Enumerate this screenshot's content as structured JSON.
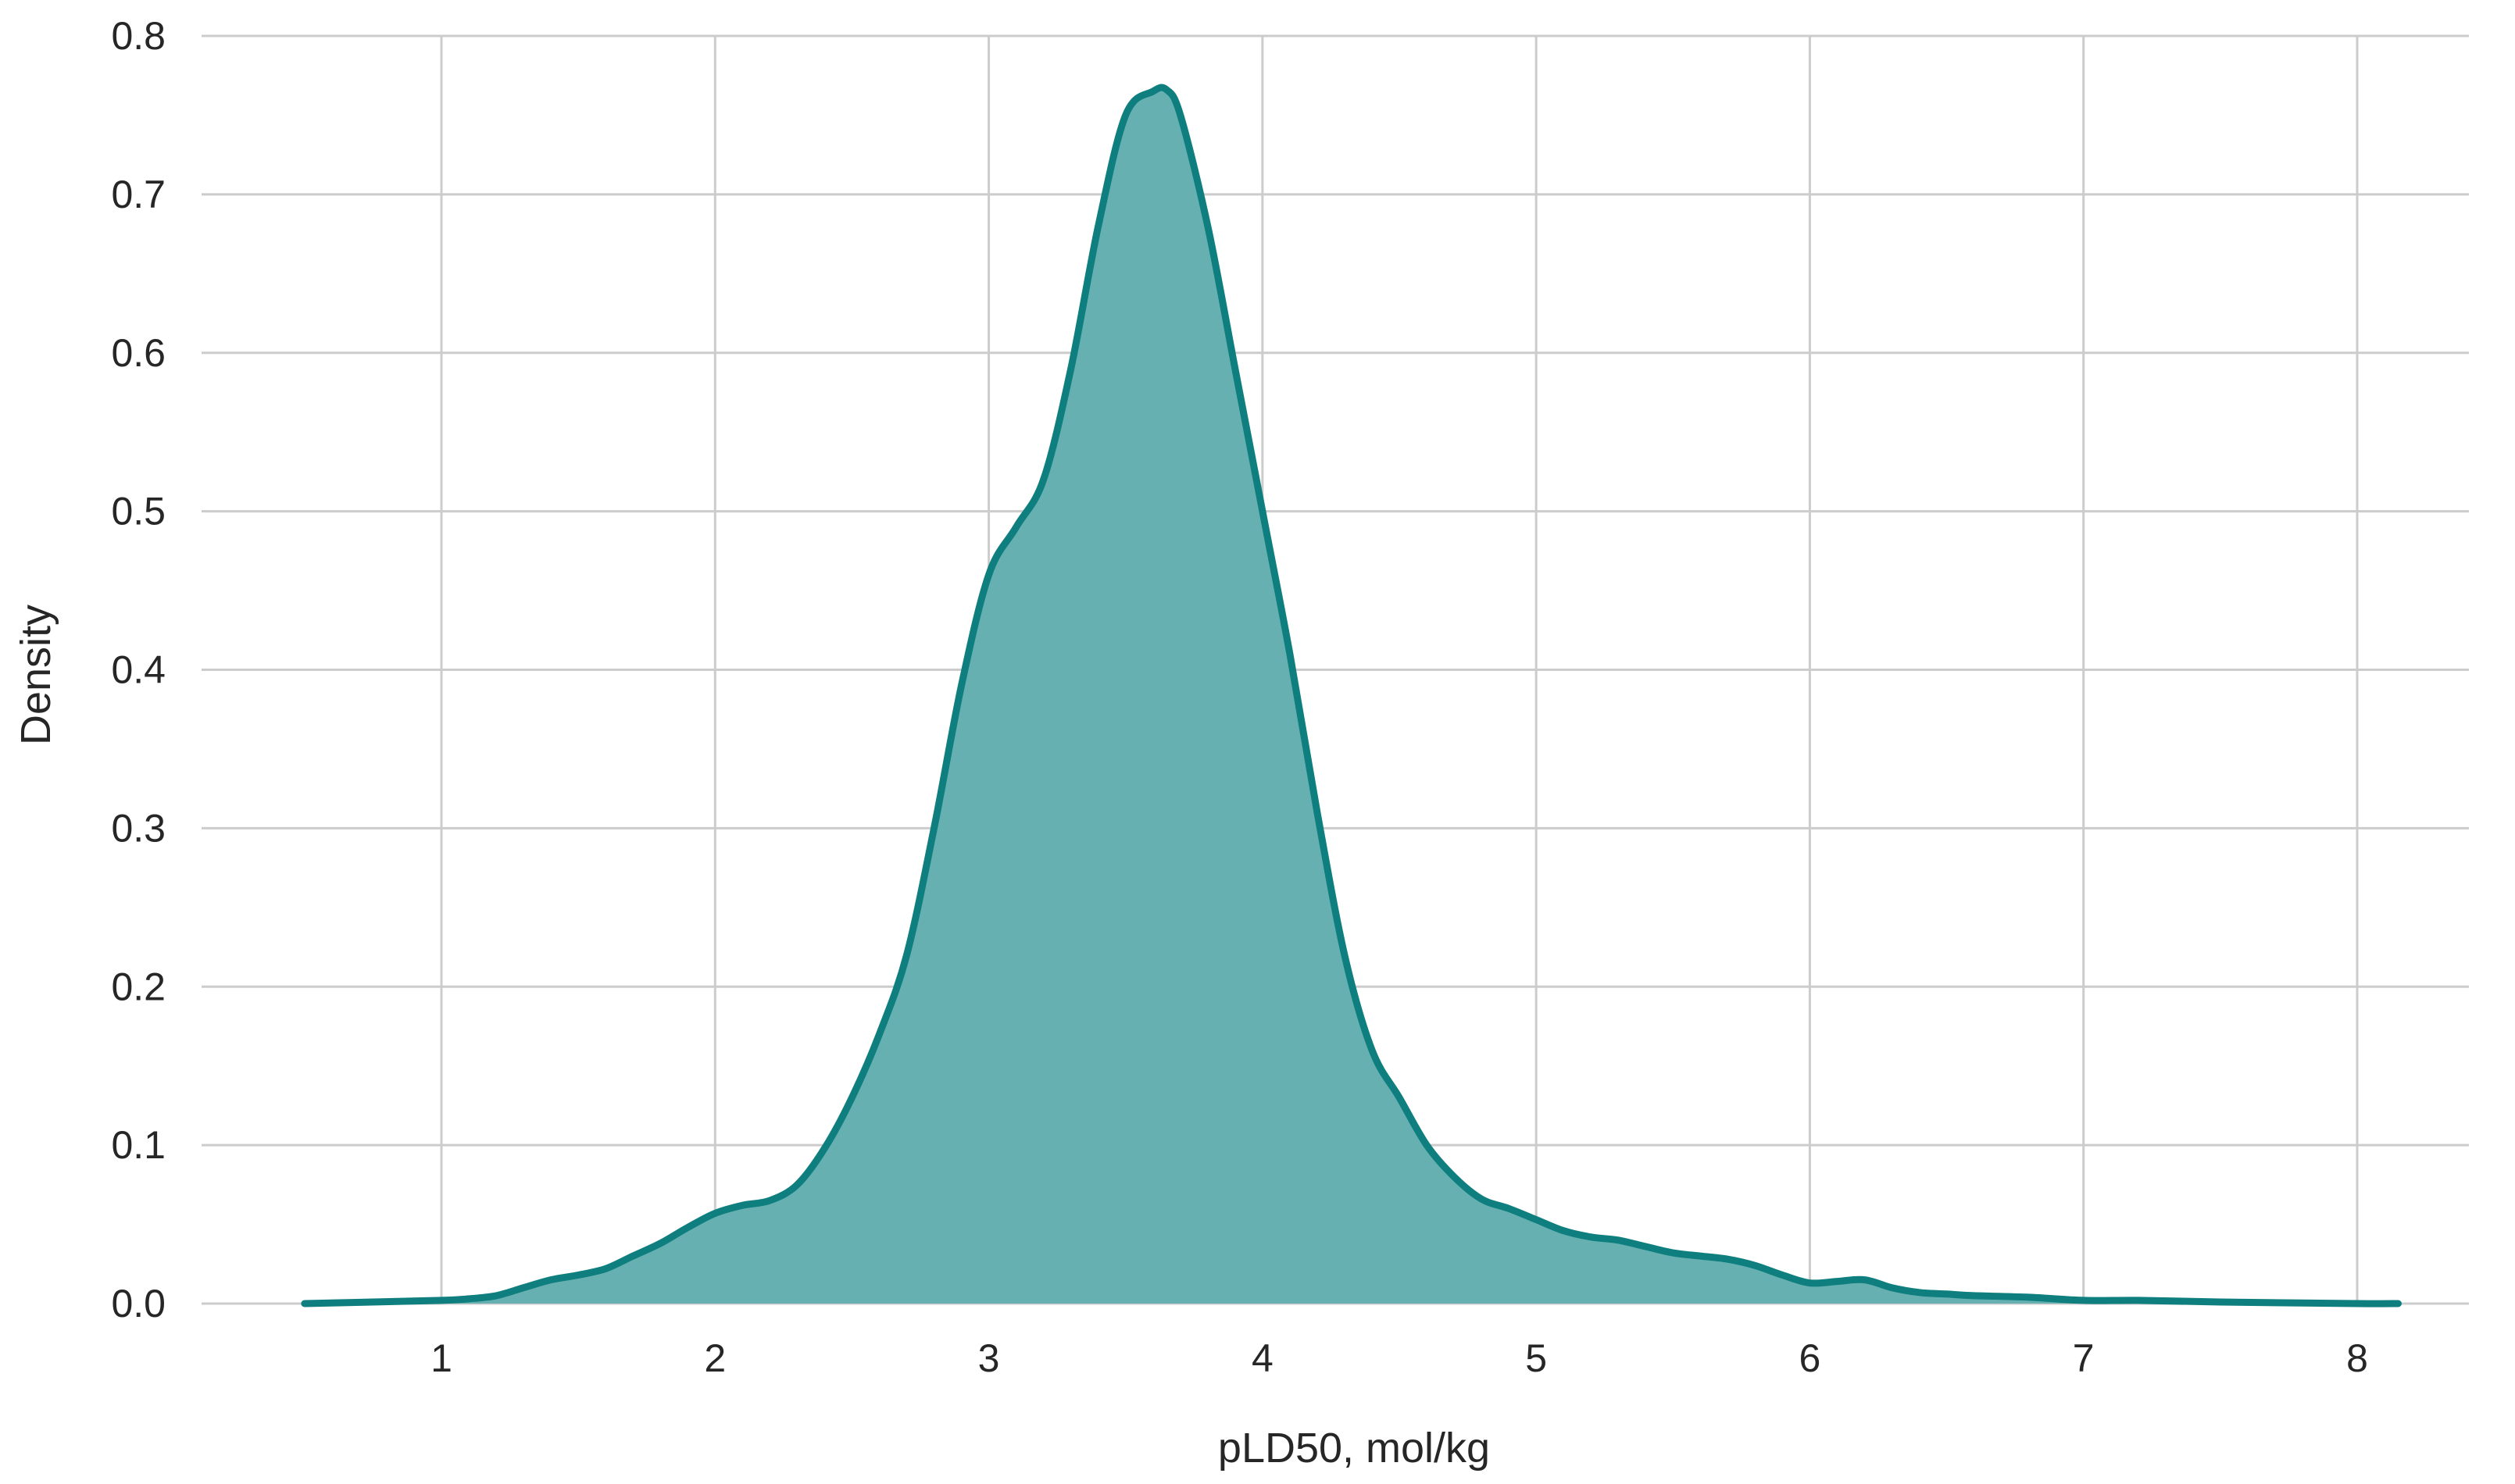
{
  "chart_data": {
    "type": "area",
    "title": "",
    "xlabel": "pLD50, mol/kg",
    "ylabel": "Density",
    "xlim": [
      0.5,
      8.2
    ],
    "ylim": [
      0,
      0.8
    ],
    "grid": true,
    "legend": "none",
    "x_ticks": [
      1,
      2,
      3,
      4,
      5,
      6,
      7,
      8
    ],
    "y_ticks": [
      0.0,
      0.1,
      0.2,
      0.3,
      0.4,
      0.5,
      0.6,
      0.7,
      0.8
    ],
    "x_tick_labels": [
      "1",
      "2",
      "3",
      "4",
      "5",
      "6",
      "7",
      "8"
    ],
    "y_tick_labels": [
      "0.0",
      "0.1",
      "0.2",
      "0.3",
      "0.4",
      "0.5",
      "0.6",
      "0.7",
      "0.8"
    ],
    "colors": {
      "line": "#0f7e7e",
      "fill": "#66b0b2",
      "grid": "#cccccc",
      "text": "#262626"
    },
    "series": [
      {
        "x": [
          0.5,
          0.75,
          1.0,
          1.1,
          1.2,
          1.3,
          1.4,
          1.5,
          1.6,
          1.7,
          1.8,
          1.9,
          2.0,
          2.1,
          2.2,
          2.3,
          2.4,
          2.5,
          2.6,
          2.7,
          2.8,
          2.9,
          3.0,
          3.1,
          3.2,
          3.3,
          3.4,
          3.5,
          3.6,
          3.65,
          3.7,
          3.8,
          3.9,
          4.0,
          4.1,
          4.2,
          4.3,
          4.4,
          4.5,
          4.6,
          4.7,
          4.8,
          4.9,
          5.0,
          5.1,
          5.2,
          5.3,
          5.4,
          5.5,
          5.6,
          5.7,
          5.8,
          5.9,
          6.0,
          6.1,
          6.2,
          6.3,
          6.4,
          6.5,
          6.6,
          6.8,
          7.0,
          7.2,
          7.5,
          8.0,
          8.15
        ],
        "y": [
          0.0,
          0.001,
          0.002,
          0.003,
          0.005,
          0.01,
          0.015,
          0.018,
          0.022,
          0.03,
          0.038,
          0.048,
          0.057,
          0.062,
          0.065,
          0.075,
          0.098,
          0.13,
          0.17,
          0.22,
          0.3,
          0.39,
          0.46,
          0.49,
          0.52,
          0.59,
          0.68,
          0.75,
          0.765,
          0.766,
          0.75,
          0.68,
          0.59,
          0.5,
          0.41,
          0.31,
          0.22,
          0.16,
          0.13,
          0.1,
          0.08,
          0.066,
          0.06,
          0.053,
          0.046,
          0.042,
          0.04,
          0.036,
          0.032,
          0.03,
          0.028,
          0.024,
          0.018,
          0.013,
          0.014,
          0.015,
          0.01,
          0.007,
          0.006,
          0.005,
          0.004,
          0.002,
          0.002,
          0.001,
          0.0,
          0.0
        ]
      }
    ]
  }
}
